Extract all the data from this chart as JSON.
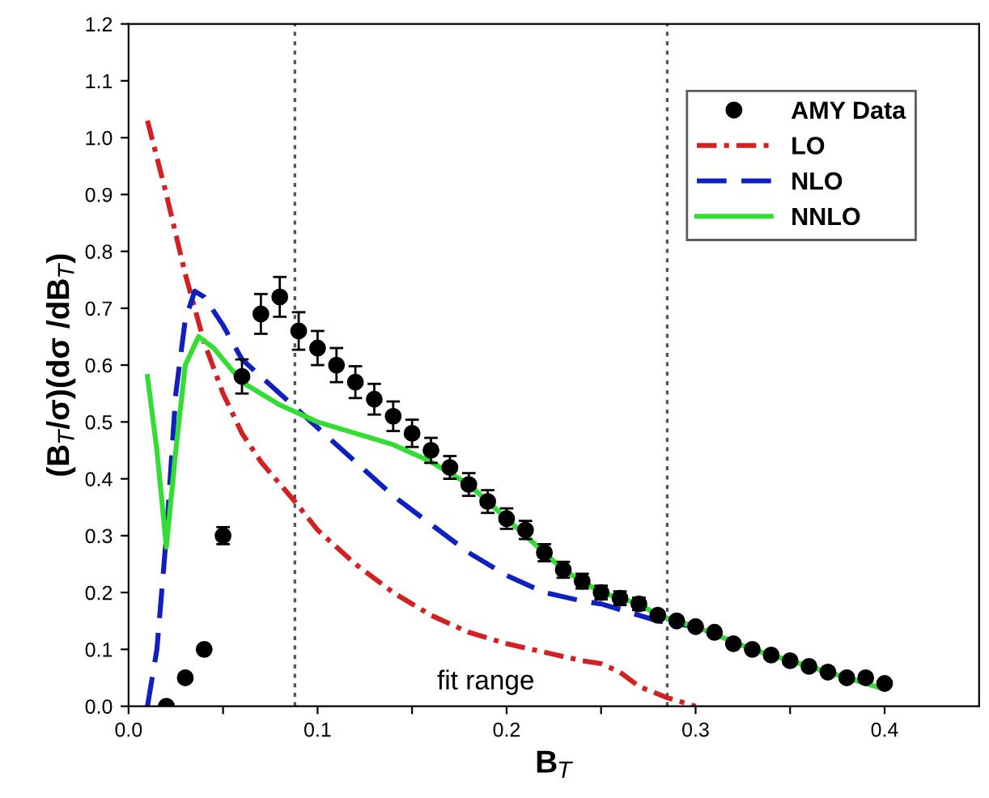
{
  "chart_data": {
    "type": "line",
    "xlabel": "B$_{T}$",
    "ylabel": "(B$_{T}$/σ)(dσ /dB$_{T}$)",
    "xlim": [
      0,
      0.45
    ],
    "ylim": [
      0,
      1.2
    ],
    "xticks": [
      {
        "value": 0.0,
        "label": "0.0"
      },
      {
        "value": 0.05,
        "label": null
      },
      {
        "value": 0.1,
        "label": "0.1"
      },
      {
        "value": 0.15,
        "label": null
      },
      {
        "value": 0.2,
        "label": "0.2"
      },
      {
        "value": 0.25,
        "label": null
      },
      {
        "value": 0.3,
        "label": "0.3"
      },
      {
        "value": 0.35,
        "label": null
      },
      {
        "value": 0.4,
        "label": "0.4"
      }
    ],
    "yticks": [
      {
        "value": 0.0,
        "label": "0.0"
      },
      {
        "value": 0.1,
        "label": "0.1"
      },
      {
        "value": 0.2,
        "label": "0.2"
      },
      {
        "value": 0.3,
        "label": "0.3"
      },
      {
        "value": 0.4,
        "label": "0.4"
      },
      {
        "value": 0.5,
        "label": "0.5"
      },
      {
        "value": 0.6,
        "label": "0.6"
      },
      {
        "value": 0.7,
        "label": "0.7"
      },
      {
        "value": 0.8,
        "label": "0.8"
      },
      {
        "value": 0.9,
        "label": "0.9"
      },
      {
        "value": 1.0,
        "label": "1.0"
      },
      {
        "value": 1.1,
        "label": "1.1"
      },
      {
        "value": 1.2,
        "label": "1.2"
      }
    ],
    "grid": false,
    "legend": "top right",
    "series": [
      {
        "name": "AMY Data",
        "type": "scatter",
        "marker": "circle",
        "color": "#000000",
        "x": [
          0.02,
          0.03,
          0.04,
          0.05,
          0.06,
          0.07,
          0.08,
          0.09,
          0.1,
          0.11,
          0.12,
          0.13,
          0.14,
          0.15,
          0.16,
          0.17,
          0.18,
          0.19,
          0.2,
          0.21,
          0.22,
          0.23,
          0.24,
          0.25,
          0.26,
          0.27,
          0.28,
          0.29,
          0.3,
          0.31,
          0.32,
          0.33,
          0.34,
          0.35,
          0.36,
          0.37,
          0.38,
          0.39,
          0.4
        ],
        "values": [
          0.0,
          0.05,
          0.1,
          0.3,
          0.58,
          0.69,
          0.72,
          0.66,
          0.63,
          0.6,
          0.57,
          0.54,
          0.51,
          0.48,
          0.45,
          0.42,
          0.39,
          0.36,
          0.33,
          0.31,
          0.27,
          0.24,
          0.22,
          0.2,
          0.19,
          0.18,
          0.16,
          0.15,
          0.14,
          0.13,
          0.11,
          0.1,
          0.09,
          0.08,
          0.07,
          0.06,
          0.05,
          0.05,
          0.04
        ],
        "errors": [
          null,
          null,
          null,
          0.015,
          0.03,
          0.035,
          0.035,
          0.033,
          0.03,
          0.03,
          0.028,
          0.027,
          0.026,
          0.024,
          0.022,
          0.02,
          0.02,
          0.02,
          0.018,
          0.016,
          0.015,
          0.014,
          0.013,
          0.012,
          0.012,
          0.011,
          null,
          null,
          null,
          null,
          null,
          null,
          null,
          null,
          null,
          null,
          null,
          null,
          null
        ]
      },
      {
        "name": "LO",
        "line_style": "dashdot",
        "color": "#d42020",
        "x": [
          0.01,
          0.02,
          0.03,
          0.04,
          0.05,
          0.06,
          0.07,
          0.088,
          0.1,
          0.12,
          0.14,
          0.16,
          0.18,
          0.2,
          0.22,
          0.24,
          0.25,
          0.26,
          0.27,
          0.285,
          0.3
        ],
        "values": [
          1.03,
          0.9,
          0.76,
          0.64,
          0.55,
          0.48,
          0.43,
          0.36,
          0.31,
          0.25,
          0.2,
          0.16,
          0.13,
          0.11,
          0.095,
          0.08,
          0.075,
          0.06,
          0.035,
          0.015,
          0.0
        ]
      },
      {
        "name": "NLO",
        "line_style": "dashed",
        "color": "#1020c0",
        "x": [
          0.01,
          0.015,
          0.02,
          0.025,
          0.03,
          0.035,
          0.04,
          0.05,
          0.06,
          0.07,
          0.08,
          0.09,
          0.1,
          0.12,
          0.14,
          0.16,
          0.18,
          0.2,
          0.22,
          0.24,
          0.25,
          0.28,
          0.3
        ],
        "values": [
          0.0,
          0.1,
          0.3,
          0.55,
          0.68,
          0.73,
          0.72,
          0.67,
          0.61,
          0.58,
          0.55,
          0.52,
          0.49,
          0.43,
          0.37,
          0.32,
          0.27,
          0.23,
          0.2,
          0.185,
          0.18,
          0.15,
          0.14
        ]
      },
      {
        "name": "NNLO",
        "line_style": "solid",
        "color": "#33dd33",
        "x": [
          0.01,
          0.015,
          0.02,
          0.025,
          0.03,
          0.037,
          0.045,
          0.06,
          0.08,
          0.1,
          0.12,
          0.14,
          0.16,
          0.18,
          0.2,
          0.22,
          0.23,
          0.25,
          0.27,
          0.28,
          0.3,
          0.33,
          0.36,
          0.38,
          0.4
        ],
        "values": [
          0.58,
          0.45,
          0.28,
          0.45,
          0.6,
          0.65,
          0.63,
          0.57,
          0.53,
          0.5,
          0.48,
          0.46,
          0.43,
          0.39,
          0.33,
          0.27,
          0.24,
          0.2,
          0.18,
          0.16,
          0.14,
          0.1,
          0.07,
          0.05,
          0.03
        ]
      }
    ],
    "ref_lines": [
      {
        "axis": "x",
        "value": 0.088,
        "line_style": "dotted",
        "color": "#555555"
      },
      {
        "axis": "x",
        "value": 0.285,
        "line_style": "dotted",
        "color": "#555555"
      }
    ],
    "annotations": [
      "fit range"
    ]
  }
}
